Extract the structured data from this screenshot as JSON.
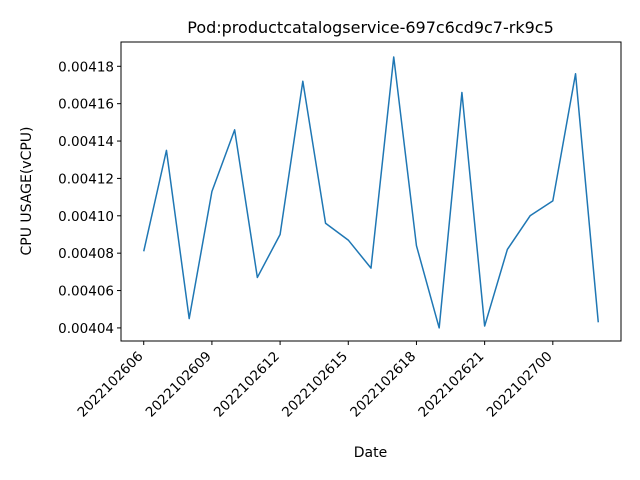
{
  "chart_data": {
    "type": "line",
    "title": "Pod:productcatalogservice-697c6cd9c7-rk9c5",
    "xlabel": "Date",
    "ylabel": "CPU USAGE(vCPU)",
    "x_ticks": [
      "2022102606",
      "2022102609",
      "2022102612",
      "2022102615",
      "2022102618",
      "2022102621",
      "2022102700"
    ],
    "y_ticks": [
      "0.00404",
      "0.00406",
      "0.00408",
      "0.00410",
      "0.00412",
      "0.00414",
      "0.00416",
      "0.00418"
    ],
    "ylim": [
      0.004033,
      0.004193
    ],
    "grid": false,
    "legend": false,
    "series": [
      {
        "color": "#1f77b4",
        "values": [
          0.004081,
          0.004135,
          0.004045,
          0.004113,
          0.004146,
          0.004067,
          0.00409,
          0.004172,
          0.004096,
          0.004087,
          0.004072,
          0.004185,
          0.004084,
          0.00404,
          0.004166,
          0.004041,
          0.004082,
          0.0041,
          0.004108,
          0.004176,
          0.004043
        ]
      }
    ]
  }
}
